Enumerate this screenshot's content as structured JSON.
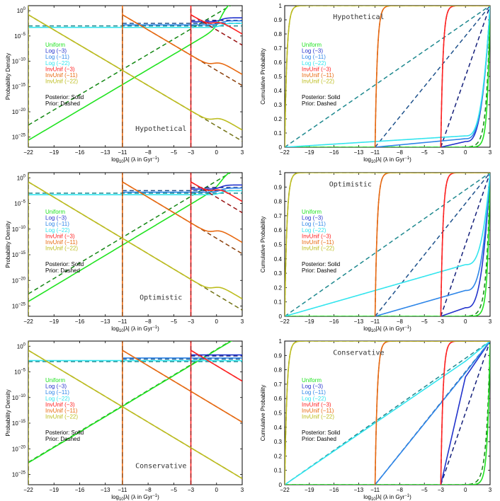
{
  "colors": {
    "Uniform": "#21e321",
    "Log (−3)": "#2233cc",
    "Log (−11)": "#2e86e8",
    "Log (−22)": "#33e5ee",
    "InvUnif (−3)": "#ff2222",
    "InvUnif (−11)": "#e86a12",
    "InvUnif (−22)": "#bdbd1f"
  },
  "legend": {
    "entries": [
      "Uniform",
      "Log (−3)",
      "Log (−11)",
      "Log (−22)",
      "InvUnif (−3)",
      "InvUnif (−11)",
      "InvUnif (−22)"
    ],
    "posterior_note": "Posterior: Solid",
    "prior_note": "Prior: Dashed"
  },
  "axes": {
    "x_ticks": [
      "−22",
      "−19",
      "−16",
      "−13",
      "−11",
      "−8",
      "−5",
      "−3",
      "0",
      "3"
    ],
    "x_label": "log10|λ| (λ in Gyr−1)",
    "density_ylabel": "Probability Density",
    "density_yticks": [
      "10^0",
      "10^−5",
      "10^−10",
      "10^−15",
      "10^−20",
      "10^−25"
    ],
    "cdf_ylabel": "Cumulative Probability",
    "cdf_yticks": [
      "0",
      "0.1",
      "0.2",
      "0.3",
      "0.4",
      "0.5",
      "0.6",
      "0.7",
      "0.8",
      "0.9",
      "1"
    ]
  },
  "chart_data": [
    {
      "type": "line",
      "panel": "density",
      "scenario": "Hypothetical",
      "title": "Hypothetical",
      "xlabel": "log10|λ| (λ in Gyr−1)",
      "ylabel": "Probability Density",
      "xlim": [
        -22,
        3
      ],
      "ylim": [
        -27,
        1
      ],
      "uniform_posterior_tail_log10": -6
    },
    {
      "type": "line",
      "panel": "cdf",
      "scenario": "Hypothetical",
      "title": "Hypothetical",
      "xlabel": "log10|λ| (λ in Gyr−1)",
      "ylabel": "Cumulative Probability",
      "xlim": [
        -22,
        3
      ],
      "ylim": [
        0,
        1
      ],
      "cdf_at_0": {
        "Log (−3)": 0.04,
        "Log (−11)": 0.06,
        "Log (−22)": 0.08,
        "Uniform": 0.02
      }
    },
    {
      "type": "line",
      "panel": "density",
      "scenario": "Optimistic",
      "title": "Optimistic",
      "xlabel": "log10|λ| (λ in Gyr−1)",
      "ylabel": "Probability Density",
      "xlim": [
        -22,
        3
      ],
      "ylim": [
        -27,
        1
      ],
      "uniform_posterior_tail_log10": -3
    },
    {
      "type": "line",
      "panel": "cdf",
      "scenario": "Optimistic",
      "title": "Optimistic",
      "xlabel": "log10|λ| (λ in Gyr−1)",
      "ylabel": "Cumulative Probability",
      "xlim": [
        -22,
        3
      ],
      "ylim": [
        0,
        1
      ],
      "cdf_at_0": {
        "Log (−3)": 0.06,
        "Log (−11)": 0.18,
        "Log (−22)": 0.36,
        "Uniform": 0.01
      }
    },
    {
      "type": "line",
      "panel": "density",
      "scenario": "Conservative",
      "title": "Conservative",
      "xlabel": "log10|λ| (λ in Gyr−1)",
      "ylabel": "Probability Density",
      "xlim": [
        -22,
        3
      ],
      "ylim": [
        -27,
        1
      ],
      "uniform_posterior_tail_log10": -0.5
    },
    {
      "type": "line",
      "panel": "cdf",
      "scenario": "Conservative",
      "title": "Conservative",
      "xlabel": "log10|λ| (λ in Gyr−1)",
      "ylabel": "Cumulative Probability",
      "xlim": [
        -22,
        3
      ],
      "ylim": [
        0,
        1
      ],
      "cdf_at_0": {
        "Log (−3)": 0.75,
        "Log (−11)": 0.78,
        "Log (−22)": 0.86,
        "Uniform": 0.001
      }
    }
  ]
}
